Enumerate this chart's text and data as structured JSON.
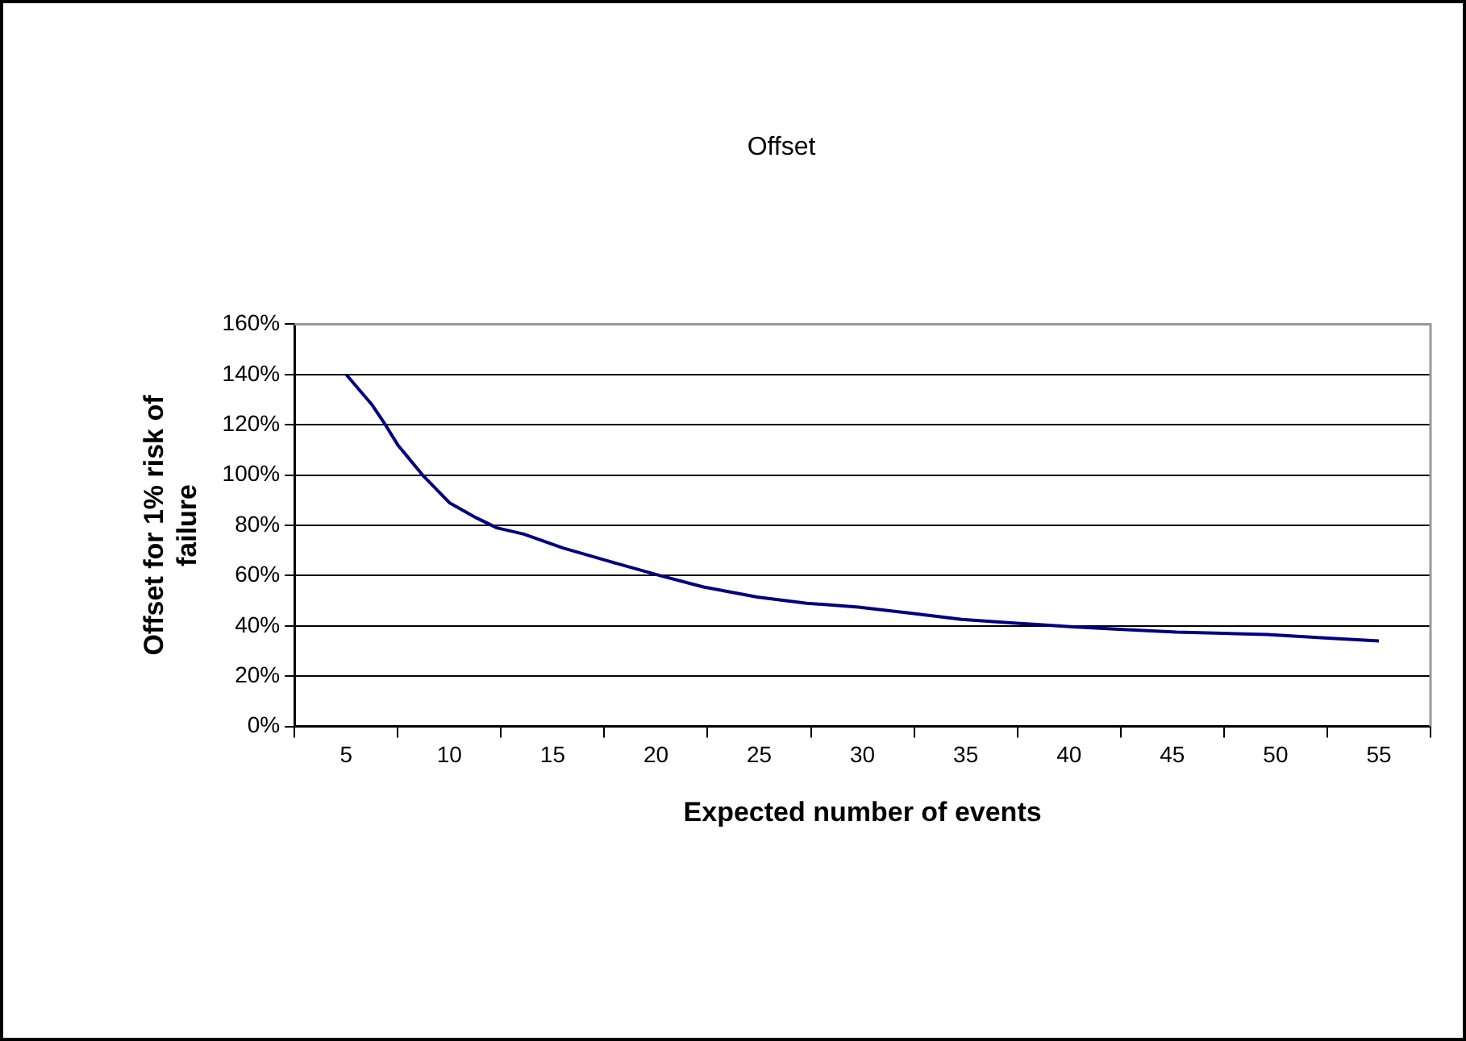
{
  "chart_data": {
    "type": "line",
    "title": "Offset",
    "xlabel": "Expected number of events",
    "ylabel": "Offset for 1% risk of failure",
    "x": [
      5,
      6.25,
      6.9,
      7.5,
      8.7,
      10,
      11.3,
      12.3,
      13.6,
      15.5,
      17.6,
      20.2,
      22.3,
      24.9,
      27.3,
      29.8,
      32.4,
      34.8,
      37.6,
      40.2,
      42.8,
      45.2,
      49.6,
      52.2,
      55
    ],
    "series": [
      {
        "color": "#000080",
        "values": [
          140,
          128,
          120,
          112,
          100,
          89,
          83,
          79,
          76.5,
          71,
          66,
          60,
          55.5,
          51.5,
          49,
          47.5,
          45,
          42.6,
          41,
          39.6,
          38.5,
          37.5,
          36.6,
          35.3,
          34
        ]
      }
    ],
    "xlim": [
      2.5,
      57.5
    ],
    "xticks": [
      {
        "value": 2.5,
        "label": null
      },
      5,
      {
        "value": 7.5,
        "label": null
      },
      10,
      {
        "value": 12.5,
        "label": null
      },
      15,
      {
        "value": 17.5,
        "label": null
      },
      20,
      {
        "value": 22.5,
        "label": null
      },
      25,
      {
        "value": 27.5,
        "label": null
      },
      30,
      {
        "value": 32.5,
        "label": null
      },
      35,
      {
        "value": 37.5,
        "label": null
      },
      40,
      {
        "value": 42.5,
        "label": null
      },
      45,
      {
        "value": 47.5,
        "label": null
      },
      50,
      {
        "value": 52.5,
        "label": null
      },
      55,
      {
        "value": 57.5,
        "label": null
      }
    ],
    "ylim": [
      0,
      160
    ],
    "yticks": [
      {
        "value": 0,
        "label": "0%"
      },
      {
        "value": 20,
        "label": "20%"
      },
      {
        "value": 40,
        "label": "40%"
      },
      {
        "value": 60,
        "label": "60%"
      },
      {
        "value": 80,
        "label": "80%"
      },
      {
        "value": 100,
        "label": "100%"
      },
      {
        "value": 120,
        "label": "120%"
      },
      {
        "value": 140,
        "label": "140%"
      },
      {
        "value": 160,
        "label": "160%"
      }
    ],
    "grid": "y",
    "legend": false,
    "marker": "none",
    "line_style": "solid"
  }
}
